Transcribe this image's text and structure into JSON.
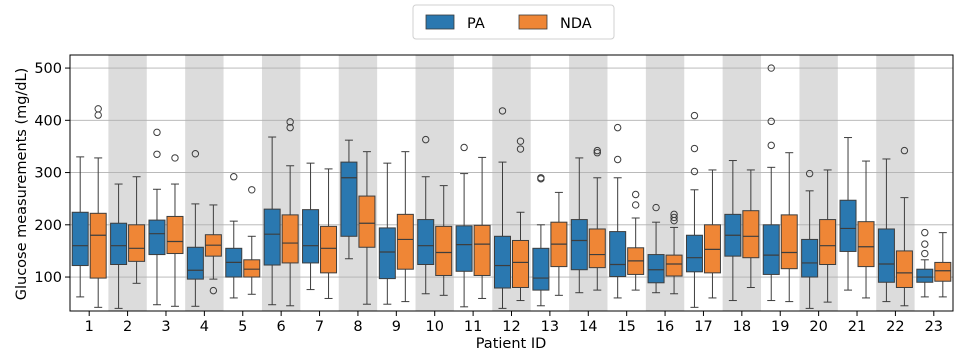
{
  "chart_data": {
    "type": "box",
    "xlabel": "Patient ID",
    "ylabel": "Glucose measurements (mg/dL)",
    "ylim": [
      35,
      525
    ],
    "yticks": [
      100,
      200,
      300,
      400,
      500
    ],
    "grid": "horizontal",
    "legend_position": "top-center",
    "shaded_alternate_columns": true,
    "categories": [
      "1",
      "2",
      "3",
      "4",
      "5",
      "6",
      "7",
      "8",
      "9",
      "10",
      "11",
      "12",
      "13",
      "14",
      "15",
      "16",
      "17",
      "18",
      "19",
      "20",
      "21",
      "22",
      "23"
    ],
    "series": [
      {
        "name": "PA",
        "color": "#2a78b0",
        "boxes": [
          {
            "whislo": 62,
            "q1": 122,
            "med": 160,
            "q3": 224,
            "whishi": 330,
            "fliers": []
          },
          {
            "whislo": 40,
            "q1": 124,
            "med": 160,
            "q3": 203,
            "whishi": 278,
            "fliers": []
          },
          {
            "whislo": 47,
            "q1": 143,
            "med": 183,
            "q3": 209,
            "whishi": 268,
            "fliers": [
              335,
              377
            ]
          },
          {
            "whislo": 44,
            "q1": 96,
            "med": 113,
            "q3": 157,
            "whishi": 240,
            "fliers": [
              336
            ]
          },
          {
            "whislo": 60,
            "q1": 100,
            "med": 128,
            "q3": 155,
            "whishi": 207,
            "fliers": [
              292
            ]
          },
          {
            "whislo": 47,
            "q1": 123,
            "med": 182,
            "q3": 230,
            "whishi": 368,
            "fliers": []
          },
          {
            "whislo": 76,
            "q1": 127,
            "med": 160,
            "q3": 229,
            "whishi": 318,
            "fliers": []
          },
          {
            "whislo": 135,
            "q1": 178,
            "med": 290,
            "q3": 320,
            "whishi": 362,
            "fliers": []
          },
          {
            "whislo": 48,
            "q1": 97,
            "med": 148,
            "q3": 194,
            "whishi": 318,
            "fliers": []
          },
          {
            "whislo": 68,
            "q1": 124,
            "med": 160,
            "q3": 210,
            "whishi": 292,
            "fliers": [
              363
            ]
          },
          {
            "whislo": 43,
            "q1": 111,
            "med": 162,
            "q3": 198,
            "whishi": 298,
            "fliers": [
              348
            ]
          },
          {
            "whislo": 40,
            "q1": 79,
            "med": 122,
            "q3": 178,
            "whishi": 320,
            "fliers": [
              418
            ]
          },
          {
            "whislo": 45,
            "q1": 75,
            "med": 98,
            "q3": 155,
            "whishi": 200,
            "fliers": [
              288,
              290
            ]
          },
          {
            "whislo": 70,
            "q1": 114,
            "med": 170,
            "q3": 210,
            "whishi": 328,
            "fliers": []
          },
          {
            "whislo": 60,
            "q1": 101,
            "med": 124,
            "q3": 187,
            "whishi": 290,
            "fliers": [
              325,
              386
            ]
          },
          {
            "whislo": 70,
            "q1": 89,
            "med": 114,
            "q3": 143,
            "whishi": 205,
            "fliers": [
              233
            ]
          },
          {
            "whislo": 42,
            "q1": 110,
            "med": 137,
            "q3": 180,
            "whishi": 267,
            "fliers": [
              302,
              346,
              409
            ]
          },
          {
            "whislo": 55,
            "q1": 140,
            "med": 180,
            "q3": 220,
            "whishi": 323,
            "fliers": []
          },
          {
            "whislo": 55,
            "q1": 105,
            "med": 142,
            "q3": 200,
            "whishi": 310,
            "fliers": [
              352,
              398,
              500
            ]
          },
          {
            "whislo": 40,
            "q1": 100,
            "med": 127,
            "q3": 172,
            "whishi": 265,
            "fliers": [
              298
            ]
          },
          {
            "whislo": 75,
            "q1": 149,
            "med": 193,
            "q3": 247,
            "whishi": 367,
            "fliers": []
          },
          {
            "whislo": 53,
            "q1": 90,
            "med": 125,
            "q3": 192,
            "whishi": 326,
            "fliers": []
          },
          {
            "whislo": 62,
            "q1": 90,
            "med": 100,
            "q3": 115,
            "whishi": 133,
            "fliers": [
              145,
              163,
              185
            ]
          }
        ]
      },
      {
        "name": "NDA",
        "color": "#ef8636",
        "boxes": [
          {
            "whislo": 42,
            "q1": 98,
            "med": 180,
            "q3": 222,
            "whishi": 328,
            "fliers": [
              410,
              422
            ]
          },
          {
            "whislo": 88,
            "q1": 130,
            "med": 155,
            "q3": 200,
            "whishi": 292,
            "fliers": []
          },
          {
            "whislo": 44,
            "q1": 145,
            "med": 168,
            "q3": 216,
            "whishi": 278,
            "fliers": [
              328
            ]
          },
          {
            "whislo": 96,
            "q1": 140,
            "med": 161,
            "q3": 181,
            "whishi": 238,
            "fliers": [
              74
            ]
          },
          {
            "whislo": 67,
            "q1": 100,
            "med": 115,
            "q3": 133,
            "whishi": 178,
            "fliers": [
              267
            ]
          },
          {
            "whislo": 45,
            "q1": 127,
            "med": 165,
            "q3": 219,
            "whishi": 313,
            "fliers": [
              386,
              397
            ]
          },
          {
            "whislo": 59,
            "q1": 108,
            "med": 155,
            "q3": 197,
            "whishi": 307,
            "fliers": []
          },
          {
            "whislo": 48,
            "q1": 157,
            "med": 203,
            "q3": 255,
            "whishi": 340,
            "fliers": []
          },
          {
            "whislo": 53,
            "q1": 115,
            "med": 172,
            "q3": 220,
            "whishi": 340,
            "fliers": []
          },
          {
            "whislo": 65,
            "q1": 103,
            "med": 147,
            "q3": 197,
            "whishi": 275,
            "fliers": []
          },
          {
            "whislo": 59,
            "q1": 103,
            "med": 163,
            "q3": 199,
            "whishi": 329,
            "fliers": []
          },
          {
            "whislo": 55,
            "q1": 80,
            "med": 128,
            "q3": 170,
            "whishi": 224,
            "fliers": [
              345,
              360
            ]
          },
          {
            "whislo": 65,
            "q1": 120,
            "med": 163,
            "q3": 205,
            "whishi": 262,
            "fliers": []
          },
          {
            "whislo": 75,
            "q1": 118,
            "med": 143,
            "q3": 192,
            "whishi": 290,
            "fliers": [
              338,
              342
            ]
          },
          {
            "whislo": 75,
            "q1": 105,
            "med": 131,
            "q3": 156,
            "whishi": 213,
            "fliers": [
              238,
              258
            ]
          },
          {
            "whislo": 68,
            "q1": 102,
            "med": 125,
            "q3": 142,
            "whishi": 195,
            "fliers": [
              208,
              214,
              220
            ]
          },
          {
            "whislo": 60,
            "q1": 108,
            "med": 153,
            "q3": 200,
            "whishi": 305,
            "fliers": []
          },
          {
            "whislo": 80,
            "q1": 137,
            "med": 178,
            "q3": 227,
            "whishi": 305,
            "fliers": []
          },
          {
            "whislo": 53,
            "q1": 116,
            "med": 147,
            "q3": 219,
            "whishi": 338,
            "fliers": []
          },
          {
            "whislo": 52,
            "q1": 124,
            "med": 160,
            "q3": 210,
            "whishi": 305,
            "fliers": []
          },
          {
            "whislo": 60,
            "q1": 120,
            "med": 158,
            "q3": 206,
            "whishi": 322,
            "fliers": []
          },
          {
            "whislo": 45,
            "q1": 80,
            "med": 108,
            "q3": 150,
            "whishi": 252,
            "fliers": [
              342
            ]
          },
          {
            "whislo": 62,
            "q1": 92,
            "med": 112,
            "q3": 128,
            "whishi": 185,
            "fliers": []
          }
        ]
      }
    ]
  }
}
